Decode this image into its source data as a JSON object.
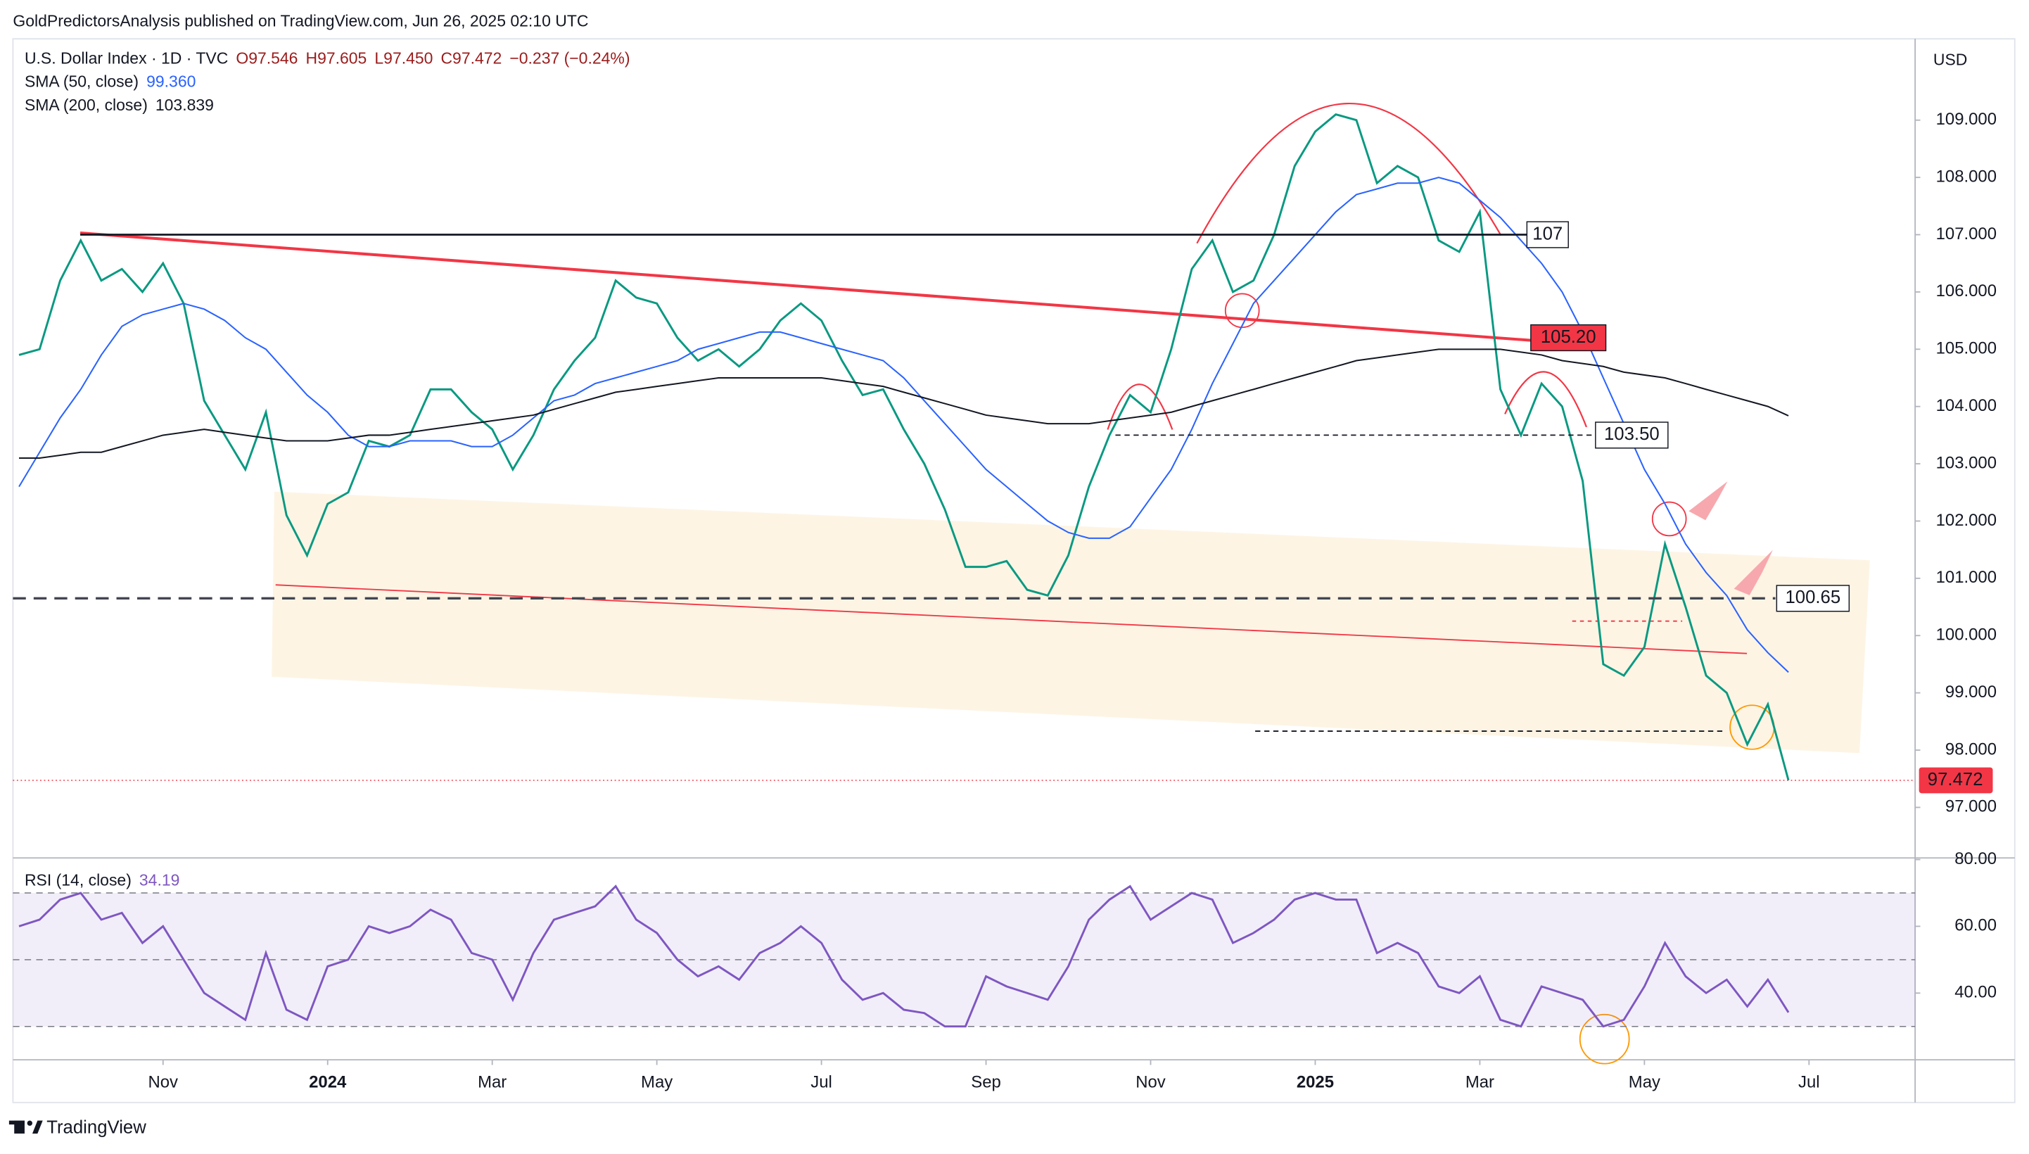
{
  "header": {
    "published": "GoldPredictorsAnalysis published on TradingView.com, Jun 26, 2025 02:10 UTC",
    "ohlc": [
      "O97.546",
      "H97.605",
      "L97.450",
      "C97.472"
    ],
    "change": "−0.237 (−0.24%)",
    "sma50_value": "99.360",
    "sma200_value": "103.839",
    "rsi_value": "34.19",
    "currency": "USD",
    "last_price": "97.472",
    "brand": "TradingView"
  },
  "chart_data": [
    {
      "type": "line",
      "ylim": [
        96.14,
        110.42
      ],
      "yticks": [
        {
          "value": 97,
          "label": "97.000"
        },
        {
          "value": 98,
          "label": "98.000"
        },
        {
          "value": 99,
          "label": "99.000"
        },
        {
          "value": 100,
          "label": "100.000"
        },
        {
          "value": 101,
          "label": "101.000"
        },
        {
          "value": 102,
          "label": "102.000"
        },
        {
          "value": 103,
          "label": "103.000"
        },
        {
          "value": 104,
          "label": "104.000"
        },
        {
          "value": 105,
          "label": "105.000"
        },
        {
          "value": 106,
          "label": "106.000"
        },
        {
          "value": 107,
          "label": "107.000"
        },
        {
          "value": 108,
          "label": "108.000"
        },
        {
          "value": 109,
          "label": "109.000"
        }
      ],
      "levels": [
        {
          "value": 107,
          "label": "107"
        },
        {
          "value": 105.2,
          "label": "105.20"
        },
        {
          "value": 103.5,
          "label": "103.50"
        },
        {
          "value": 100.65,
          "label": "100.65"
        }
      ],
      "series": [
        {
          "name": "U.S. Dollar Index · 1D · TVC",
          "color": "#089981",
          "values": [
            104.9,
            105.0,
            106.2,
            106.9,
            106.2,
            106.4,
            106.0,
            106.5,
            105.8,
            104.1,
            103.5,
            102.9,
            103.9,
            102.1,
            101.4,
            102.3,
            102.5,
            103.4,
            103.3,
            103.5,
            104.3,
            104.3,
            103.9,
            103.6,
            102.9,
            103.5,
            104.3,
            104.8,
            105.2,
            106.2,
            105.9,
            105.8,
            105.2,
            104.8,
            105.0,
            104.7,
            105.0,
            105.5,
            105.8,
            105.5,
            104.8,
            104.2,
            104.3,
            103.6,
            103.0,
            102.2,
            101.2,
            101.2,
            101.3,
            100.8,
            100.7,
            101.4,
            102.6,
            103.5,
            104.2,
            103.9,
            105.0,
            106.4,
            106.9,
            106.0,
            106.2,
            107.0,
            108.2,
            108.8,
            109.1,
            109.0,
            107.9,
            108.2,
            108.0,
            106.9,
            106.7,
            107.4,
            104.3,
            103.5,
            104.4,
            104.0,
            102.7,
            99.5,
            99.3,
            99.8,
            101.6,
            100.5,
            99.3,
            99.0,
            98.1,
            98.8,
            97.472,
            null,
            null,
            null,
            null,
            null,
            null
          ]
        },
        {
          "name": "SMA (50, close)",
          "color": "#2962ff",
          "values": [
            102.6,
            103.2,
            103.8,
            104.3,
            104.9,
            105.4,
            105.6,
            105.7,
            105.8,
            105.7,
            105.5,
            105.2,
            105.0,
            104.6,
            104.2,
            103.9,
            103.5,
            103.3,
            103.3,
            103.4,
            103.4,
            103.4,
            103.3,
            103.3,
            103.5,
            103.8,
            104.1,
            104.2,
            104.4,
            104.5,
            104.6,
            104.7,
            104.8,
            105.0,
            105.1,
            105.2,
            105.3,
            105.3,
            105.2,
            105.1,
            105.0,
            104.9,
            104.8,
            104.5,
            104.1,
            103.7,
            103.3,
            102.9,
            102.6,
            102.3,
            102.0,
            101.8,
            101.7,
            101.7,
            101.9,
            102.4,
            102.9,
            103.6,
            104.4,
            105.1,
            105.8,
            106.2,
            106.6,
            107.0,
            107.4,
            107.7,
            107.8,
            107.9,
            107.9,
            108.0,
            107.9,
            107.6,
            107.3,
            106.9,
            106.5,
            106.0,
            105.3,
            104.5,
            103.7,
            102.9,
            102.3,
            101.6,
            101.1,
            100.7,
            100.1,
            99.7,
            99.36,
            null,
            null,
            null,
            null,
            null,
            null
          ]
        },
        {
          "name": "SMA (200, close)",
          "color": "#131722",
          "values": [
            103.1,
            103.1,
            103.15,
            103.2,
            103.2,
            103.3,
            103.4,
            103.5,
            103.55,
            103.6,
            103.55,
            103.5,
            103.45,
            103.4,
            103.4,
            103.4,
            103.45,
            103.5,
            103.5,
            103.55,
            103.6,
            103.65,
            103.7,
            103.75,
            103.8,
            103.85,
            103.95,
            104.05,
            104.15,
            104.25,
            104.3,
            104.35,
            104.4,
            104.45,
            104.5,
            104.5,
            104.5,
            104.5,
            104.5,
            104.5,
            104.45,
            104.4,
            104.35,
            104.25,
            104.15,
            104.05,
            103.95,
            103.85,
            103.8,
            103.75,
            103.7,
            103.7,
            103.7,
            103.75,
            103.8,
            103.85,
            103.9,
            104.0,
            104.1,
            104.2,
            104.3,
            104.4,
            104.5,
            104.6,
            104.7,
            104.8,
            104.85,
            104.9,
            104.95,
            105.0,
            105.0,
            105.0,
            105.0,
            104.95,
            104.9,
            104.8,
            104.75,
            104.7,
            104.6,
            104.55,
            104.5,
            104.4,
            104.3,
            104.2,
            104.1,
            104.0,
            103.839,
            null,
            null,
            null,
            null,
            null,
            null
          ]
        }
      ]
    },
    {
      "type": "line",
      "categories": [
        null,
        null,
        null,
        null,
        null,
        null,
        null,
        "Nov",
        null,
        null,
        null,
        null,
        null,
        null,
        null,
        "2024",
        null,
        null,
        null,
        null,
        null,
        null,
        null,
        "Mar",
        null,
        null,
        null,
        null,
        null,
        null,
        null,
        "May",
        null,
        null,
        null,
        null,
        null,
        null,
        null,
        "Jul",
        null,
        null,
        null,
        null,
        null,
        null,
        null,
        "Sep",
        null,
        null,
        null,
        null,
        null,
        null,
        null,
        "Nov",
        null,
        null,
        null,
        null,
        null,
        null,
        null,
        "2025",
        null,
        null,
        null,
        null,
        null,
        null,
        null,
        "Mar",
        null,
        null,
        null,
        null,
        null,
        null,
        null,
        "May",
        null,
        null,
        null,
        null,
        null,
        null,
        null,
        "Jul",
        null,
        null,
        null,
        null,
        null
      ],
      "ylim": [
        20.4,
        80.1
      ],
      "yticks": [
        {
          "value": 80,
          "label": "80.00"
        },
        {
          "value": 60,
          "label": "60.00"
        },
        {
          "value": 40,
          "label": "40.00"
        }
      ],
      "levels": [
        70,
        50,
        30
      ],
      "series": [
        {
          "name": "RSI (14, close)",
          "color": "#7e57c2",
          "values": [
            60,
            62,
            68,
            70,
            62,
            64,
            55,
            60,
            50,
            40,
            36,
            32,
            52,
            35,
            32,
            48,
            50,
            60,
            58,
            60,
            65,
            62,
            52,
            50,
            38,
            52,
            62,
            64,
            66,
            72,
            62,
            58,
            50,
            45,
            48,
            44,
            52,
            55,
            60,
            55,
            44,
            38,
            40,
            35,
            34,
            30,
            30,
            45,
            42,
            40,
            38,
            48,
            62,
            68,
            72,
            62,
            66,
            70,
            68,
            55,
            58,
            62,
            68,
            70,
            68,
            68,
            52,
            55,
            52,
            42,
            40,
            45,
            32,
            30,
            42,
            40,
            38,
            30,
            32,
            42,
            55,
            45,
            40,
            44,
            36,
            44,
            34.19,
            null,
            null,
            null,
            null,
            null,
            null
          ]
        }
      ]
    }
  ]
}
